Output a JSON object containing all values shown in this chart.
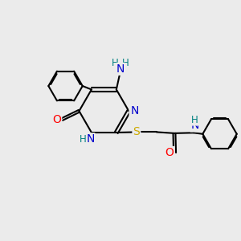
{
  "bg_color": "#ebebeb",
  "bond_color": "#000000",
  "bond_width": 1.5,
  "atom_colors": {
    "N": "#0000cc",
    "O": "#ff0000",
    "S": "#ccaa00",
    "C": "#000000",
    "H": "#008080"
  },
  "font_size_atoms": 10,
  "font_size_h": 8.5
}
